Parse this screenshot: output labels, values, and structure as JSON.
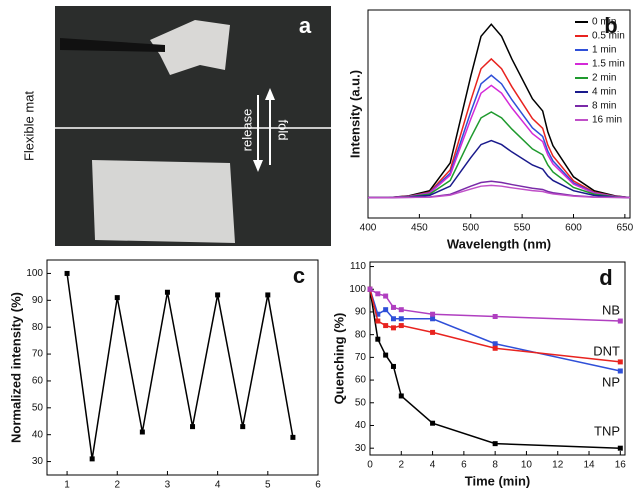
{
  "photo": {
    "label": "a",
    "caption": "Flexible mat",
    "arrows": [
      "release",
      "fold"
    ]
  },
  "chart_data": [
    {
      "type": "line",
      "label": "b",
      "xlabel": "Wavelength (nm)",
      "ylabel": "Intensity (a.u.)",
      "x": [
        400,
        420,
        440,
        460,
        480,
        500,
        510,
        520,
        530,
        540,
        560,
        570,
        575,
        580,
        600,
        620,
        640,
        655
      ],
      "xlim": [
        400,
        655
      ],
      "ylim": [
        0,
        102
      ],
      "xticks": [
        400,
        450,
        500,
        550,
        600,
        650
      ],
      "legend": "upper right",
      "series": [
        {
          "name": "0 min",
          "color": "#000000",
          "values": [
            10,
            10,
            10.9,
            13.4,
            27,
            69.5,
            89.1,
            95,
            89.1,
            78,
            58.5,
            52.5,
            42.3,
            35.5,
            20.2,
            13.4,
            10.9,
            10
          ]
        },
        {
          "name": "0.5 min",
          "color": "#e8231f",
          "values": [
            10,
            10,
            10.7,
            12.7,
            23.6,
            57.6,
            73.2,
            78,
            73.2,
            64.4,
            48.8,
            44,
            35.8,
            30.4,
            18.2,
            12.7,
            10.7,
            10
          ]
        },
        {
          "name": "1 min",
          "color": "#2f4fd8",
          "values": [
            10,
            10,
            10.6,
            12.4,
            22,
            52,
            65.8,
            70,
            65.8,
            58,
            44.2,
            40,
            32.8,
            28,
            17.2,
            12.4,
            10.6,
            10
          ]
        },
        {
          "name": "1.5 min",
          "color": "#d42ad8",
          "values": [
            10,
            10,
            10.6,
            12.2,
            21,
            48.5,
            61.2,
            65,
            61.2,
            54,
            41.4,
            37.5,
            30.9,
            26.5,
            16.6,
            12.2,
            10.6,
            10
          ]
        },
        {
          "name": "2 min",
          "color": "#1f9a2e",
          "values": [
            10,
            10,
            10.4,
            11.7,
            18.4,
            39.4,
            49.1,
            52,
            49.1,
            43.6,
            33.9,
            31,
            26,
            22.6,
            15,
            11.7,
            10.4,
            10
          ]
        },
        {
          "name": "4 min",
          "color": "#1a1a8c",
          "values": [
            10,
            10,
            10.3,
            11.1,
            15.6,
            29.6,
            36,
            38,
            36,
            32.4,
            26,
            24,
            20.6,
            18.4,
            13.4,
            11.1,
            10.3,
            10
          ]
        },
        {
          "name": "8 min",
          "color": "#7a2aa8",
          "values": [
            10,
            10,
            10.1,
            10.3,
            11.6,
            15.6,
            17.4,
            18,
            17.4,
            16.4,
            14.6,
            14,
            13,
            12.4,
            11,
            10.3,
            10.1,
            10
          ]
        },
        {
          "name": "16 min",
          "color": "#c04fc8",
          "values": [
            10,
            10,
            10.1,
            10.2,
            11.2,
            14.2,
            15.6,
            16,
            15.6,
            14.8,
            13.4,
            13,
            12.3,
            11.8,
            10.7,
            10.2,
            10.1,
            10
          ]
        }
      ]
    },
    {
      "type": "line",
      "label": "c",
      "xlabel": "Cycles",
      "ylabel": "Normalized intensity (%)",
      "x": [
        1,
        1.5,
        2,
        2.5,
        3,
        3.5,
        4,
        4.5,
        5,
        5.5
      ],
      "values": [
        100,
        31,
        91,
        41,
        93,
        43,
        92,
        43,
        92,
        39
      ],
      "color": "#000000",
      "marker": "square",
      "xlim": [
        0.6,
        6
      ],
      "ylim": [
        25,
        105
      ],
      "xticks": [
        1,
        2,
        3,
        4,
        5,
        6
      ],
      "yticks": [
        30,
        40,
        50,
        60,
        70,
        80,
        90,
        100
      ]
    },
    {
      "type": "line",
      "label": "d",
      "xlabel": "Time (min)",
      "ylabel": "Quenching (%)",
      "x": [
        0,
        0.5,
        1,
        1.5,
        2,
        4,
        8,
        16
      ],
      "marker": "square",
      "legend": "inline",
      "xlim": [
        0,
        16.3
      ],
      "ylim": [
        27,
        112
      ],
      "xticks": [
        0,
        2,
        4,
        6,
        8,
        10,
        12,
        14,
        16
      ],
      "yticks": [
        30,
        40,
        50,
        60,
        70,
        80,
        90,
        100,
        110
      ],
      "series": [
        {
          "name": "TNP",
          "color": "#000000",
          "values": [
            100,
            78,
            71,
            66,
            53,
            41,
            32,
            30
          ]
        },
        {
          "name": "NP",
          "color": "#2f4fd8",
          "values": [
            100,
            89,
            91,
            87,
            87,
            87,
            76,
            64
          ]
        },
        {
          "name": "DNT",
          "color": "#e8231f",
          "values": [
            100,
            86,
            84,
            83,
            84,
            81,
            74,
            68
          ]
        },
        {
          "name": "NB",
          "color": "#b03fc0",
          "values": [
            100,
            98,
            97,
            92,
            91,
            89,
            88,
            86
          ]
        }
      ]
    }
  ]
}
